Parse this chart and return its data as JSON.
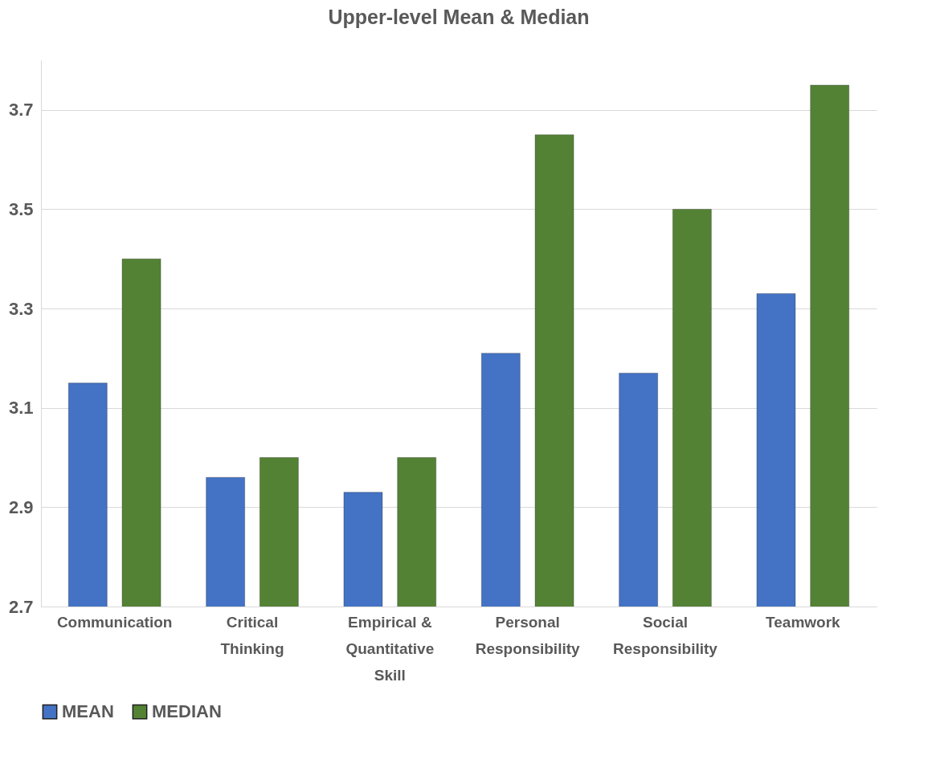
{
  "chart_data": {
    "type": "bar",
    "title": "Upper-level Mean & Median",
    "categories": [
      "Communication",
      "Critical Thinking",
      "Empirical & Quantitative Skill",
      "Personal Responsibility",
      "Social Responsibility",
      "Teamwork"
    ],
    "series": [
      {
        "name": "MEAN",
        "color": "#4472c4",
        "values": [
          3.15,
          2.96,
          2.93,
          3.21,
          3.17,
          3.33
        ]
      },
      {
        "name": "MEDIAN",
        "color": "#548235",
        "values": [
          3.4,
          3.0,
          3.0,
          3.65,
          3.5,
          3.75
        ]
      }
    ],
    "ylim": [
      2.7,
      3.8
    ],
    "yticks": [
      2.7,
      2.9,
      3.1,
      3.3,
      3.5,
      3.7
    ],
    "grid": "y",
    "legend": "bottom"
  }
}
